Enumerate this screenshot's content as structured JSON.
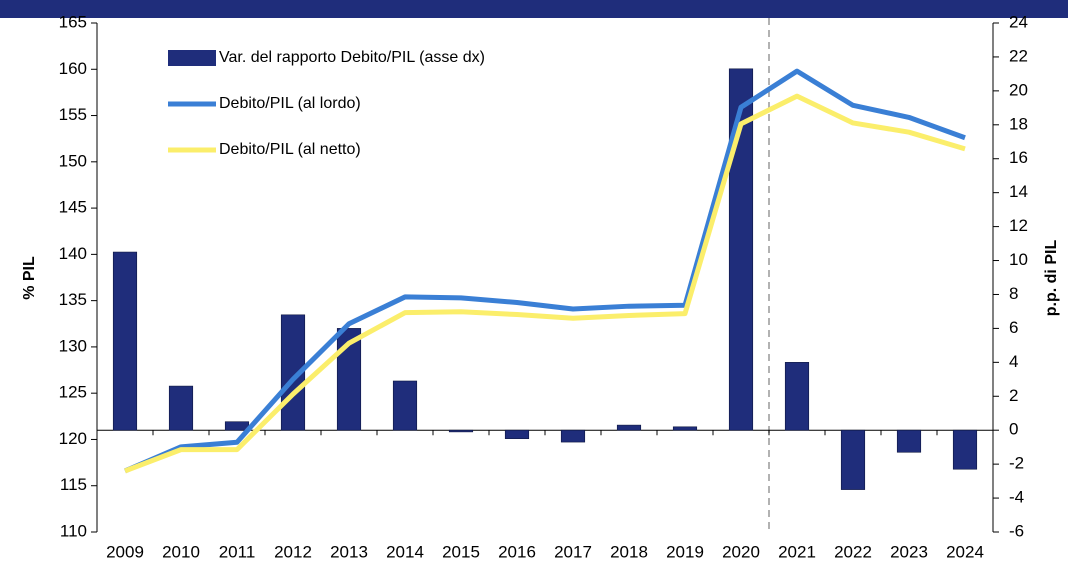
{
  "chart_data": {
    "type": "bar",
    "categories": [
      "2009",
      "2010",
      "2011",
      "2012",
      "2013",
      "2014",
      "2015",
      "2016",
      "2017",
      "2018",
      "2019",
      "2020",
      "2021",
      "2022",
      "2023",
      "2024"
    ],
    "series": [
      {
        "name": "Var. del rapporto Debito/PIL (asse dx)",
        "type": "bar",
        "axis": "y2",
        "color": "#1f2d7b",
        "values": [
          10.5,
          2.6,
          0.5,
          6.8,
          6.0,
          2.9,
          -0.1,
          -0.5,
          -0.7,
          0.3,
          0.2,
          21.3,
          4.0,
          -3.5,
          -1.3,
          -2.3
        ]
      },
      {
        "name": "Debito/PIL (al lordo)",
        "type": "line",
        "axis": "y",
        "color": "#3a7fd5",
        "values": [
          116.6,
          119.2,
          119.7,
          126.5,
          132.5,
          135.4,
          135.3,
          134.8,
          134.1,
          134.4,
          134.5,
          155.9,
          159.8,
          156.1,
          154.8,
          152.6
        ]
      },
      {
        "name": "Debito/PIL (al netto)",
        "type": "line",
        "axis": "y",
        "color": "#fbee6b",
        "values": [
          116.6,
          118.9,
          118.9,
          124.9,
          130.4,
          133.7,
          133.8,
          133.5,
          133.1,
          133.4,
          133.6,
          154.1,
          157.1,
          154.2,
          153.2,
          151.4
        ]
      }
    ],
    "ylabel": "% PIL",
    "y2label": "p.p. di PIL",
    "ylim": [
      110,
      165
    ],
    "yticks": [
      110,
      115,
      120,
      125,
      130,
      135,
      140,
      145,
      150,
      155,
      160,
      165
    ],
    "y2lim": [
      -6,
      24
    ],
    "y2ticks": [
      -6,
      -4,
      -2,
      0,
      2,
      4,
      6,
      8,
      10,
      12,
      14,
      16,
      18,
      20,
      22,
      24
    ],
    "legend": "upper left",
    "grid": false
  }
}
